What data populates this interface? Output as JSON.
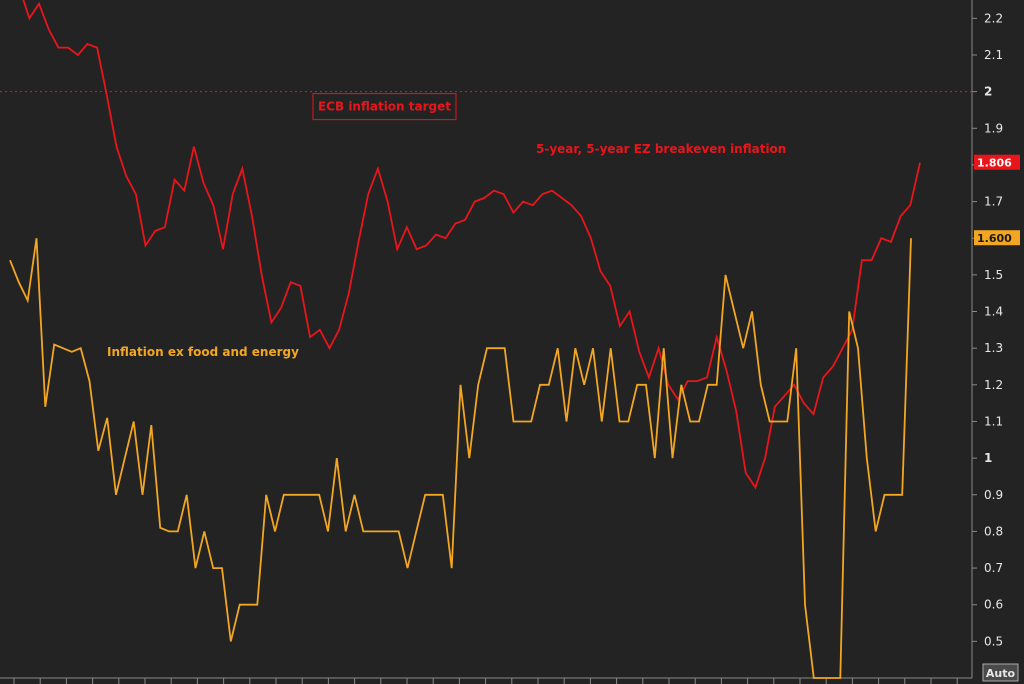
{
  "chart_data": {
    "type": "line",
    "title": "",
    "xlabel": "",
    "ylabel": "",
    "ylim": [
      0.4,
      2.25
    ],
    "y_ticks": [
      "0.5",
      "0.6",
      "0.7",
      "0.8",
      "0.9",
      "1",
      "1.1",
      "1.2",
      "1.3",
      "1.4",
      "1.5",
      "1.6",
      "1.7",
      "1.8",
      "1.9",
      "2",
      "2.1",
      "2.2"
    ],
    "reference_line": {
      "value": 2.0,
      "label": "ECB inflation target",
      "color": "#e8161b",
      "style": "dotted"
    },
    "axis_button": "Auto",
    "grid": false,
    "series": [
      {
        "name": "5-year, 5-year EZ breakeven inflation",
        "color": "#e8161b",
        "last_value_label": "1.806",
        "values": [
          2.3,
          2.28,
          2.2,
          2.24,
          2.17,
          2.12,
          2.12,
          2.1,
          2.13,
          2.12,
          1.99,
          1.85,
          1.77,
          1.72,
          1.58,
          1.62,
          1.63,
          1.76,
          1.73,
          1.85,
          1.75,
          1.69,
          1.57,
          1.72,
          1.79,
          1.66,
          1.5,
          1.37,
          1.41,
          1.48,
          1.47,
          1.33,
          1.35,
          1.3,
          1.35,
          1.45,
          1.59,
          1.72,
          1.79,
          1.7,
          1.57,
          1.63,
          1.57,
          1.58,
          1.61,
          1.6,
          1.64,
          1.65,
          1.7,
          1.71,
          1.73,
          1.72,
          1.67,
          1.7,
          1.69,
          1.72,
          1.73,
          1.71,
          1.69,
          1.66,
          1.6,
          1.51,
          1.47,
          1.36,
          1.4,
          1.29,
          1.22,
          1.3,
          1.2,
          1.16,
          1.21,
          1.21,
          1.22,
          1.33,
          1.24,
          1.13,
          0.96,
          0.92,
          1.0,
          1.14,
          1.17,
          1.2,
          1.15,
          1.12,
          1.22,
          1.25,
          1.3,
          1.35,
          1.54,
          1.54,
          1.6,
          1.59,
          1.66,
          1.69,
          1.806
        ]
      },
      {
        "name": "Inflation ex food and energy",
        "color": "#f2a622",
        "last_value_label": "1.600",
        "values": [
          1.54,
          1.48,
          1.43,
          1.6,
          1.14,
          1.31,
          1.3,
          1.29,
          1.3,
          1.21,
          1.02,
          1.11,
          0.9,
          1.0,
          1.1,
          0.9,
          1.09,
          0.81,
          0.8,
          0.8,
          0.9,
          0.7,
          0.8,
          0.7,
          0.7,
          0.5,
          0.6,
          0.6,
          0.6,
          0.9,
          0.8,
          0.9,
          0.9,
          0.9,
          0.9,
          0.9,
          0.8,
          1.0,
          0.8,
          0.9,
          0.8,
          0.8,
          0.8,
          0.8,
          0.8,
          0.7,
          0.8,
          0.9,
          0.9,
          0.9,
          0.7,
          1.2,
          1.0,
          1.2,
          1.3,
          1.3,
          1.3,
          1.1,
          1.1,
          1.1,
          1.2,
          1.2,
          1.3,
          1.1,
          1.3,
          1.2,
          1.3,
          1.1,
          1.3,
          1.1,
          1.1,
          1.2,
          1.2,
          1.0,
          1.3,
          1.0,
          1.2,
          1.1,
          1.1,
          1.2,
          1.2,
          1.5,
          1.4,
          1.3,
          1.4,
          1.2,
          1.1,
          1.1,
          1.1,
          1.3,
          0.6,
          0.4,
          0.4,
          0.4,
          0.4,
          1.4,
          1.3,
          1.0,
          0.8,
          0.9,
          0.9,
          0.9,
          1.6
        ]
      }
    ],
    "annotations": [
      {
        "text": "5-year, 5-year EZ breakeven inflation",
        "color": "#e8161b",
        "x_index": 57,
        "y": 1.78
      },
      {
        "text": "Inflation ex food and energy",
        "color": "#f2a622",
        "x_index": 10,
        "y": 1.26
      }
    ]
  }
}
